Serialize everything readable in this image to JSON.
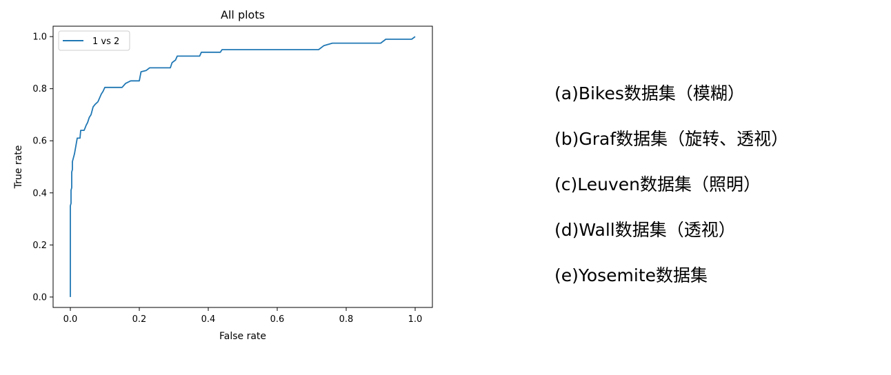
{
  "chart_data": {
    "type": "line",
    "title": "All plots",
    "xlabel": "False rate",
    "ylabel": "True rate",
    "xlim": [
      -0.05,
      1.05
    ],
    "ylim": [
      -0.04,
      1.04
    ],
    "xticks": [
      "0.0",
      "0.2",
      "0.4",
      "0.6",
      "0.8",
      "1.0"
    ],
    "yticks": [
      "0.0",
      "0.2",
      "0.4",
      "0.6",
      "0.8",
      "1.0"
    ],
    "legend_position": "top-left",
    "grid": false,
    "series": [
      {
        "name": "1 vs 2",
        "color": "#1f77b4",
        "x": [
          0.0,
          0.0,
          0.002,
          0.002,
          0.004,
          0.004,
          0.006,
          0.006,
          0.008,
          0.012,
          0.016,
          0.02,
          0.024,
          0.028,
          0.03,
          0.04,
          0.046,
          0.05,
          0.055,
          0.06,
          0.066,
          0.072,
          0.08,
          0.09,
          0.095,
          0.1,
          0.15,
          0.16,
          0.175,
          0.2,
          0.205,
          0.22,
          0.23,
          0.29,
          0.295,
          0.305,
          0.31,
          0.375,
          0.38,
          0.435,
          0.44,
          0.72,
          0.735,
          0.76,
          0.9,
          0.915,
          0.99,
          1.0
        ],
        "y": [
          0.0,
          0.35,
          0.36,
          0.41,
          0.42,
          0.48,
          0.49,
          0.52,
          0.53,
          0.55,
          0.58,
          0.61,
          0.61,
          0.61,
          0.64,
          0.64,
          0.66,
          0.67,
          0.69,
          0.7,
          0.73,
          0.74,
          0.75,
          0.78,
          0.79,
          0.805,
          0.805,
          0.82,
          0.83,
          0.83,
          0.865,
          0.87,
          0.88,
          0.88,
          0.9,
          0.91,
          0.925,
          0.925,
          0.94,
          0.94,
          0.95,
          0.95,
          0.965,
          0.975,
          0.975,
          0.99,
          0.99,
          1.0
        ]
      }
    ]
  },
  "captions": [
    "(a)Bikes数据集（模糊）",
    "(b)Graf数据集（旋转、透视）",
    "(c)Leuven数据集（照明）",
    "(d)Wall数据集（透视）",
    "(e)Yosemite数据集"
  ]
}
